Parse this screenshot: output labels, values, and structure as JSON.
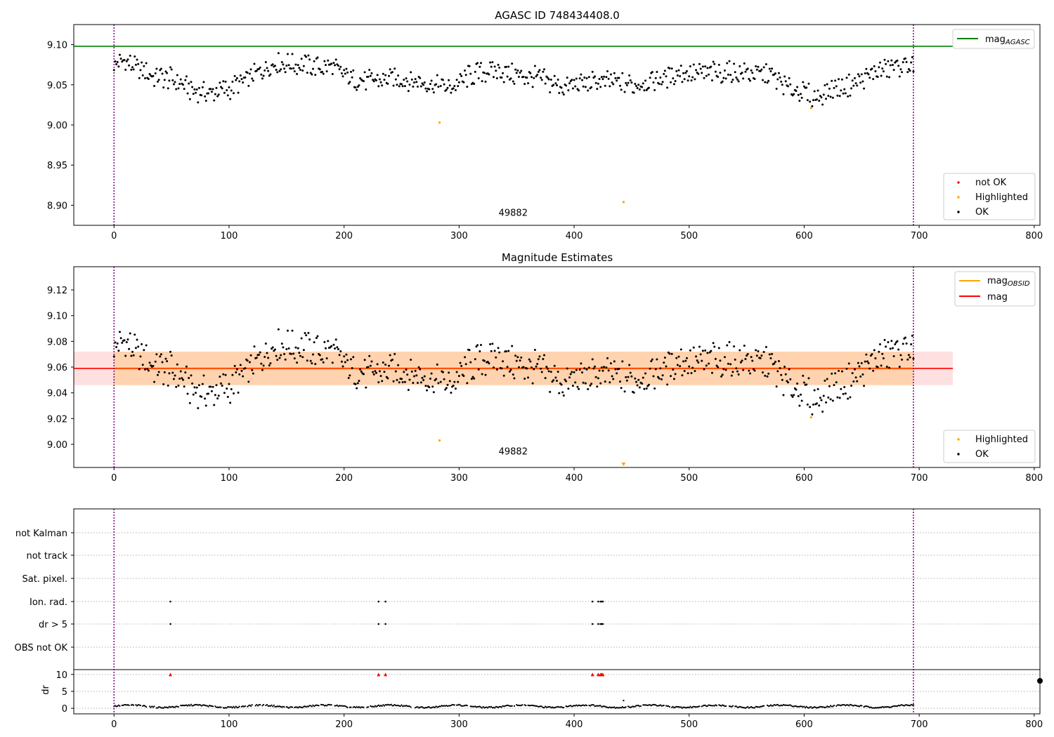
{
  "chart_data": [
    {
      "type": "scatter",
      "title": "AGASC ID 748434408.0",
      "xlim": [
        -35,
        805
      ],
      "ylim": [
        8.875,
        9.125
      ],
      "x_ticks": [
        "0",
        "100",
        "200",
        "300",
        "400",
        "500",
        "600",
        "700",
        "800"
      ],
      "y_ticks": [
        "9.10",
        "9.05",
        "9.00",
        "8.95",
        "8.90"
      ],
      "x_tick_values": [
        0,
        100,
        200,
        300,
        400,
        500,
        600,
        700,
        800
      ],
      "y_tick_values": [
        9.1,
        9.05,
        9.0,
        8.95,
        8.9
      ],
      "vlines": [
        0,
        695
      ],
      "obsid_label": "49882",
      "obsid_x": 347,
      "obsid_y": 8.887,
      "hlines": [
        {
          "name": "mag",
          "sub": "AGASC",
          "value": 9.098,
          "color": "#008000"
        }
      ],
      "legend_lines": [
        {
          "name": "mag",
          "sub": "AGASC",
          "color": "#008000"
        }
      ],
      "legend_points": [
        {
          "name": "not OK",
          "color": "#ff0000"
        },
        {
          "name": "Highlighted",
          "color": "#ffa500"
        },
        {
          "name": "OK",
          "color": "#000000"
        }
      ],
      "highlighted": [
        [
          283,
          9.003
        ],
        [
          443,
          8.904
        ],
        [
          606,
          9.021
        ]
      ],
      "legend_position": "upper right / lower right"
    },
    {
      "type": "scatter",
      "title": "Magnitude Estimates",
      "xlim": [
        -35,
        805
      ],
      "ylim": [
        8.982,
        9.138
      ],
      "x_ticks": [
        "0",
        "100",
        "200",
        "300",
        "400",
        "500",
        "600",
        "700",
        "800"
      ],
      "y_ticks": [
        "9.12",
        "9.10",
        "9.08",
        "9.06",
        "9.04",
        "9.02",
        "9.00"
      ],
      "x_tick_values": [
        0,
        100,
        200,
        300,
        400,
        500,
        600,
        700,
        800
      ],
      "y_tick_values": [
        9.12,
        9.1,
        9.08,
        9.06,
        9.04,
        9.02,
        9.0
      ],
      "vlines": [
        0,
        695
      ],
      "obsid_label": "49882",
      "obsid_x": 347,
      "obsid_y": 8.992,
      "mag": 9.059,
      "mag_obsid": 9.0585,
      "band": [
        9.046,
        9.072
      ],
      "legend_lines": [
        {
          "name": "mag",
          "sub": "OBSID",
          "color": "#ffa500"
        },
        {
          "name": "mag",
          "sub": "",
          "color": "#ff0000"
        }
      ],
      "legend_points": [
        {
          "name": "Highlighted",
          "color": "#ffa500"
        },
        {
          "name": "OK",
          "color": "#000000"
        }
      ],
      "highlighted": [
        [
          283,
          9.003
        ],
        [
          606,
          9.021
        ]
      ],
      "offscale_marker_x": 443
    },
    {
      "type": "scatter",
      "ylabel": "dr",
      "xlim": [
        -35,
        805
      ],
      "flag_rows": [
        "not Kalman",
        "not track",
        "Sat. pixel.",
        "Ion. rad.",
        "dr > 5",
        "OBS not OK"
      ],
      "flag_points": {
        "Ion. rad.": [
          49,
          230,
          236,
          416,
          421,
          423,
          424,
          425
        ],
        "dr > 5": [
          49,
          230,
          236,
          416,
          421,
          423,
          424,
          425
        ]
      },
      "dr_ticks": [
        "10",
        "5",
        "0"
      ],
      "dr_tick_values": [
        10,
        5,
        0
      ],
      "dr_ylim": [
        -0.8,
        10.8
      ],
      "dr_exceed_x": [
        49,
        230,
        236,
        416,
        421,
        423,
        424,
        425
      ],
      "dr_exceed_value": 10,
      "x_ticks": [
        "0",
        "100",
        "200",
        "300",
        "400",
        "500",
        "600",
        "700",
        "800"
      ],
      "x_tick_values": [
        0,
        100,
        200,
        300,
        400,
        500,
        600,
        700,
        800
      ],
      "vlines": [
        0,
        695
      ]
    }
  ]
}
